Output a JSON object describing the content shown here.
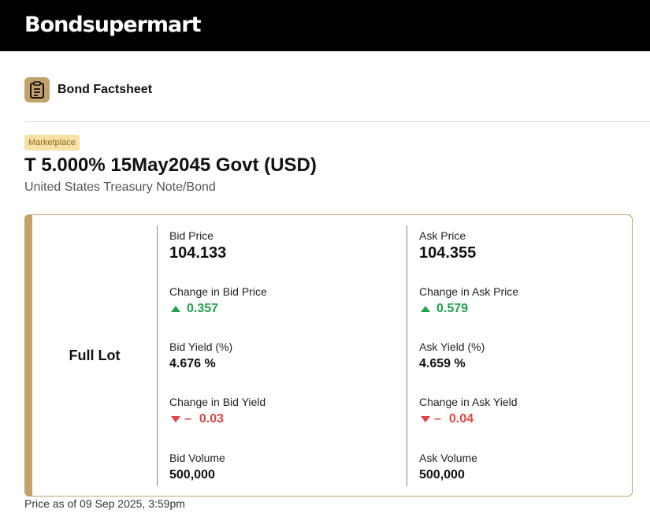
{
  "header": {
    "logo_text": "Bondsupermart"
  },
  "factsheet": {
    "icon": "clipboard-icon",
    "title": "Bond Factsheet"
  },
  "bond": {
    "badge": "Marketplace",
    "title": "T 5.000% 15May2045 Govt (USD)",
    "subtitle": "United States Treasury Note/Bond"
  },
  "quote": {
    "lot_label": "Full Lot",
    "bid": {
      "price_label": "Bid Price",
      "price_value": "104.133",
      "change_price_label": "Change in Bid Price",
      "change_price_value": "0.357",
      "change_price_direction": "up",
      "yield_label": "Bid Yield (%)",
      "yield_value": "4.676 %",
      "change_yield_label": "Change in Bid Yield",
      "change_yield_sign": "–",
      "change_yield_value": "0.03",
      "change_yield_direction": "down",
      "volume_label": "Bid Volume",
      "volume_value": "500,000"
    },
    "ask": {
      "price_label": "Ask Price",
      "price_value": "104.355",
      "change_price_label": "Change in Ask Price",
      "change_price_value": "0.579",
      "change_price_direction": "up",
      "yield_label": "Ask Yield (%)",
      "yield_value": "4.659 %",
      "change_yield_label": "Change in Ask Yield",
      "change_yield_sign": "–",
      "change_yield_value": "0.04",
      "change_yield_direction": "down",
      "volume_label": "Ask Volume",
      "volume_value": "500,000"
    },
    "price_as_of": "Price as of 09 Sep 2025, 3:59pm"
  },
  "colors": {
    "accent_gold": "#c2a26a",
    "badge_bg": "#f7e1a6",
    "up_green": "#1fa34a",
    "down_red": "#e04545"
  }
}
